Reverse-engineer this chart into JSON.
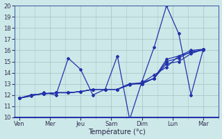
{
  "background_color": "#cde8e8",
  "grid_color": "#a8c8c8",
  "line_color": "#2233aa",
  "xlabel": "Température (°c)",
  "ylim": [
    10,
    20
  ],
  "yticks": [
    10,
    11,
    12,
    13,
    14,
    15,
    16,
    17,
    18,
    19,
    20
  ],
  "day_labels": [
    "Ven",
    "Mer",
    "Jeu",
    "Sam",
    "Dim",
    "Lun",
    "Mar"
  ],
  "day_positions": [
    0,
    1,
    2,
    3,
    4,
    5,
    6
  ],
  "lines": [
    [
      11.7,
      11.9,
      12.2,
      12.0,
      15.3,
      14.3,
      12.0,
      12.5,
      15.5,
      9.8,
      13.2,
      16.3,
      20.0,
      17.5,
      12.0,
      16.1
    ],
    [
      11.7,
      12.0,
      12.1,
      12.2,
      12.2,
      12.3,
      12.5,
      12.5,
      12.5,
      13.0,
      13.0,
      13.5,
      15.0,
      15.3,
      15.9,
      16.0
    ],
    [
      11.7,
      12.0,
      12.1,
      12.2,
      12.2,
      12.3,
      12.5,
      12.5,
      12.5,
      12.9,
      13.1,
      13.5,
      14.8,
      15.0,
      15.7,
      16.1
    ],
    [
      11.7,
      12.0,
      12.1,
      12.2,
      12.2,
      12.3,
      12.5,
      12.5,
      12.5,
      13.0,
      13.1,
      13.8,
      14.5,
      15.5,
      15.8,
      16.1
    ],
    [
      11.7,
      12.0,
      12.1,
      12.2,
      12.2,
      12.3,
      12.5,
      12.5,
      12.5,
      13.0,
      13.0,
      13.5,
      15.2,
      15.5,
      16.0,
      16.1
    ]
  ],
  "marker": "D",
  "marker_size": 2.0,
  "linewidth": 0.9
}
